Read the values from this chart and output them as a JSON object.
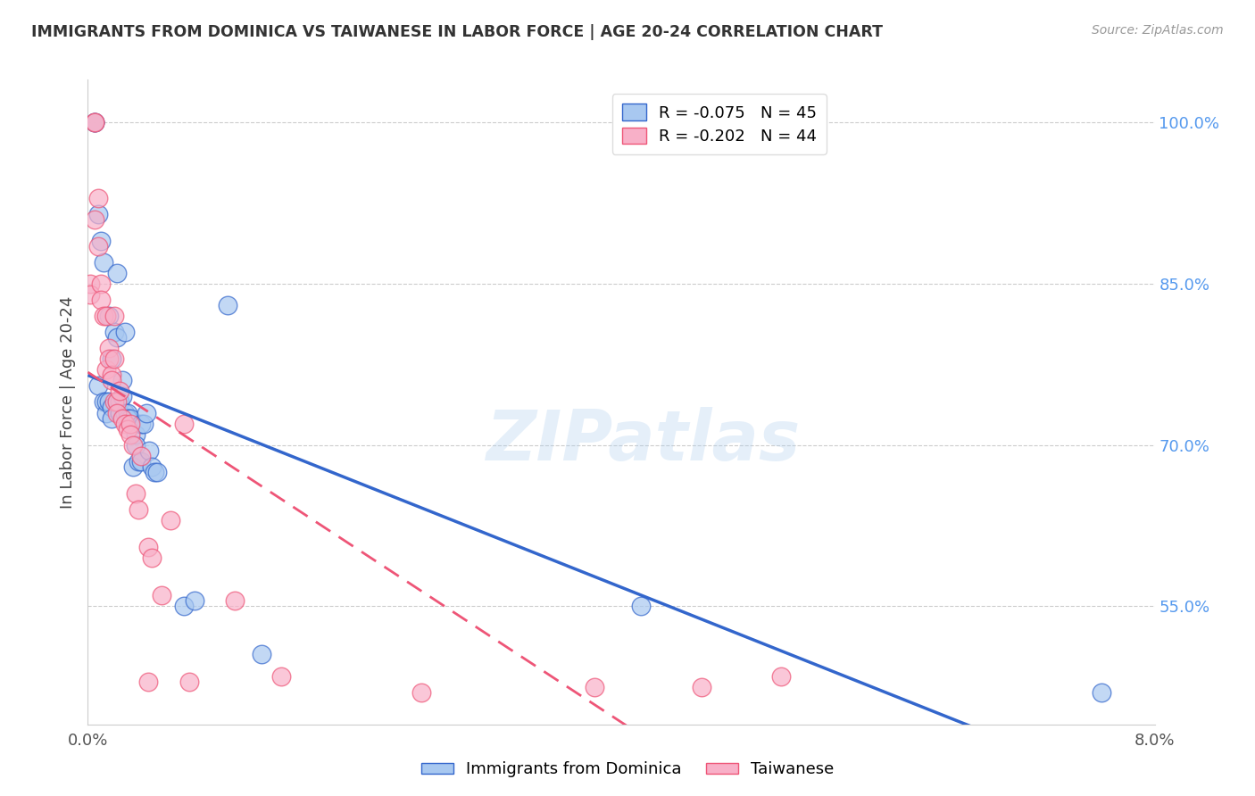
{
  "title": "IMMIGRANTS FROM DOMINICA VS TAIWANESE IN LABOR FORCE | AGE 20-24 CORRELATION CHART",
  "source": "Source: ZipAtlas.com",
  "ylabel": "In Labor Force | Age 20-24",
  "ylabel_right_ticks": [
    55.0,
    70.0,
    85.0,
    100.0
  ],
  "xlim": [
    0.0,
    8.0
  ],
  "ylim": [
    44.0,
    104.0
  ],
  "blue_label": "Immigrants from Dominica",
  "pink_label": "Taiwanese",
  "blue_R": -0.075,
  "blue_N": 45,
  "pink_R": -0.202,
  "pink_N": 44,
  "blue_color": "#A8C8F0",
  "pink_color": "#F8B0C8",
  "blue_line_color": "#3366CC",
  "pink_line_color": "#EE5577",
  "watermark": "ZIPatlas",
  "blue_x": [
    0.05,
    0.05,
    0.08,
    0.08,
    0.1,
    0.12,
    0.12,
    0.14,
    0.14,
    0.16,
    0.16,
    0.18,
    0.18,
    0.18,
    0.2,
    0.22,
    0.22,
    0.22,
    0.24,
    0.24,
    0.26,
    0.26,
    0.28,
    0.28,
    0.3,
    0.3,
    0.32,
    0.34,
    0.36,
    0.36,
    0.38,
    0.4,
    0.4,
    0.42,
    0.44,
    0.46,
    0.48,
    0.5,
    0.52,
    0.72,
    0.8,
    1.05,
    1.3,
    4.15,
    7.6
  ],
  "blue_y": [
    100.0,
    100.0,
    91.5,
    75.5,
    89.0,
    87.0,
    74.0,
    73.0,
    74.0,
    82.0,
    74.0,
    78.0,
    73.5,
    72.5,
    80.5,
    86.0,
    80.0,
    74.0,
    74.0,
    73.0,
    76.0,
    74.5,
    80.5,
    73.0,
    73.0,
    72.5,
    72.5,
    68.0,
    71.0,
    70.0,
    68.5,
    72.0,
    68.5,
    72.0,
    73.0,
    69.5,
    68.0,
    67.5,
    67.5,
    55.0,
    55.5,
    83.0,
    50.5,
    55.0,
    47.0
  ],
  "pink_x": [
    0.02,
    0.02,
    0.05,
    0.05,
    0.05,
    0.08,
    0.08,
    0.1,
    0.1,
    0.12,
    0.14,
    0.14,
    0.16,
    0.16,
    0.18,
    0.18,
    0.2,
    0.2,
    0.2,
    0.22,
    0.22,
    0.24,
    0.26,
    0.28,
    0.3,
    0.32,
    0.32,
    0.34,
    0.36,
    0.38,
    0.4,
    0.45,
    0.45,
    0.48,
    0.55,
    0.62,
    0.72,
    0.76,
    1.1,
    1.45,
    2.5,
    3.8,
    4.6,
    5.2
  ],
  "pink_y": [
    85.0,
    84.0,
    100.0,
    100.0,
    91.0,
    93.0,
    88.5,
    85.0,
    83.5,
    82.0,
    82.0,
    77.0,
    79.0,
    78.0,
    76.5,
    76.0,
    82.0,
    78.0,
    74.0,
    74.0,
    73.0,
    75.0,
    72.5,
    72.0,
    71.5,
    72.0,
    71.0,
    70.0,
    65.5,
    64.0,
    69.0,
    48.0,
    60.5,
    59.5,
    56.0,
    63.0,
    72.0,
    48.0,
    55.5,
    48.5,
    47.0,
    47.5,
    47.5,
    48.5
  ]
}
